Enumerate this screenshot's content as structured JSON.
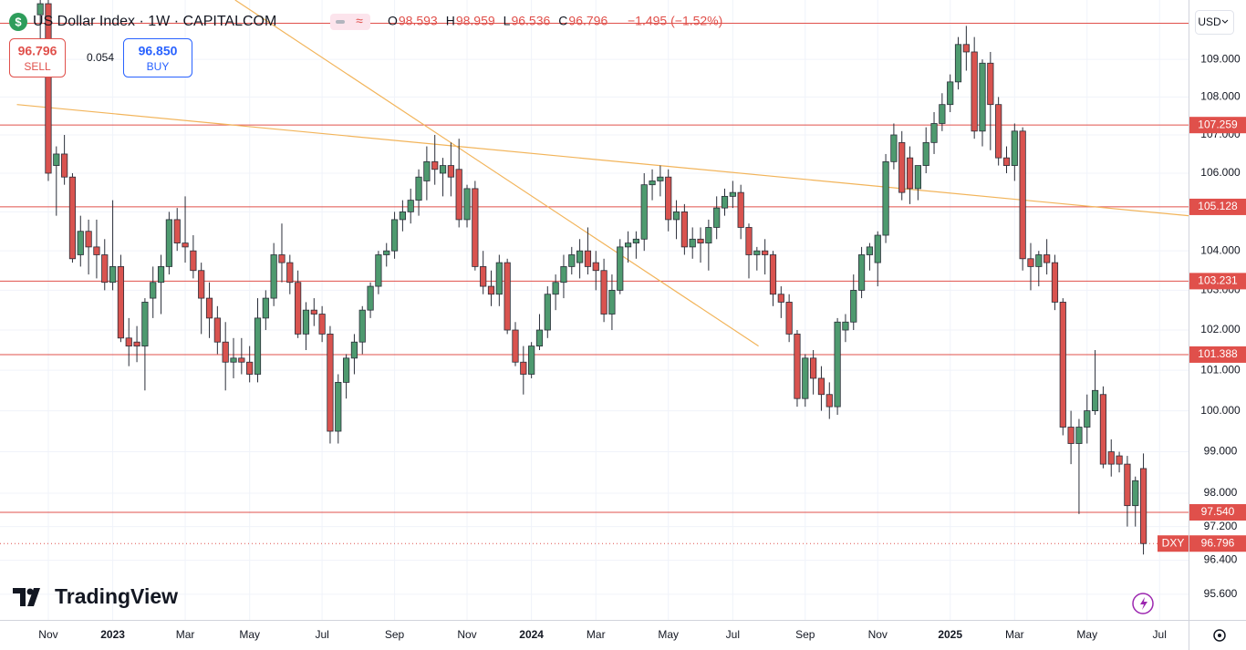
{
  "header": {
    "title": "US Dollar Index · 1W · CAPITALCOM",
    "ohlc": [
      {
        "key": "O",
        "value": "98.593"
      },
      {
        "key": "H",
        "value": "98.959"
      },
      {
        "key": "L",
        "value": "96.536"
      },
      {
        "key": "C",
        "value": "96.796"
      }
    ],
    "change": "−1.495 (−1.52%)",
    "sell": {
      "price": "96.796",
      "label": "SELL"
    },
    "spread": "0.054",
    "buy": {
      "price": "96.850",
      "label": "BUY"
    },
    "currency": "USD",
    "brand": "TradingView"
  },
  "chart_data": {
    "type": "candlestick",
    "log_scale": true,
    "grid": true,
    "up_color": "#4e9a6f",
    "down_color": "#d9534f",
    "level_color": "#e0504b",
    "trend_color": "#f2b45a",
    "ylim": [
      95.0,
      110.6
    ],
    "xlim": [
      -5,
      142.6
    ],
    "yticks": [
      {
        "value": 109,
        "label": "109.000"
      },
      {
        "value": 108,
        "label": "108.000"
      },
      {
        "value": 107,
        "label": "107.000"
      },
      {
        "value": 106,
        "label": "106.000"
      },
      {
        "value": 105,
        "label": "105.000"
      },
      {
        "value": 104,
        "label": "104.000"
      },
      {
        "value": 103,
        "label": "103.000"
      },
      {
        "value": 102,
        "label": "102.000"
      },
      {
        "value": 101,
        "label": "101.000"
      },
      {
        "value": 100,
        "label": "100.000"
      },
      {
        "value": 99,
        "label": "99.000"
      },
      {
        "value": 98,
        "label": "98.000"
      },
      {
        "value": 97.2,
        "label": "97.200"
      },
      {
        "value": 96.4,
        "label": "96.400"
      },
      {
        "value": 95.6,
        "label": "95.600"
      }
    ],
    "levels": [
      {
        "value": 107.259,
        "label": "107.259"
      },
      {
        "value": 105.128,
        "label": "105.128"
      },
      {
        "value": 103.231,
        "label": "103.231"
      },
      {
        "value": 101.388,
        "label": "101.388"
      },
      {
        "value": 97.54,
        "label": "97.540"
      }
    ],
    "unlabeled_levels": [
      109.97
    ],
    "last_price": 96.796,
    "symbol_tag": "DXY",
    "trendlines": [
      {
        "x": [
          -2.9,
          142.6
        ],
        "y": [
          107.8,
          104.9
        ]
      },
      {
        "x": [
          24.2,
          89.2
        ],
        "y": [
          110.6,
          101.6
        ]
      }
    ],
    "categories": [
      null,
      "Nov",
      null,
      null,
      null,
      null,
      null,
      null,
      null,
      "2023",
      null,
      null,
      null,
      null,
      null,
      null,
      null,
      null,
      "Mar",
      null,
      null,
      null,
      null,
      null,
      null,
      null,
      "May",
      null,
      null,
      null,
      null,
      null,
      null,
      null,
      null,
      "Jul",
      null,
      null,
      null,
      null,
      null,
      null,
      null,
      null,
      "Sep",
      null,
      null,
      null,
      null,
      null,
      null,
      null,
      null,
      "Nov",
      null,
      null,
      null,
      null,
      null,
      null,
      null,
      "2024",
      null,
      null,
      null,
      null,
      null,
      null,
      null,
      "Mar",
      null,
      null,
      null,
      null,
      null,
      null,
      null,
      null,
      "May",
      null,
      null,
      null,
      null,
      null,
      null,
      null,
      "Jul",
      null,
      null,
      null,
      null,
      null,
      null,
      null,
      null,
      "Sep",
      null,
      null,
      null,
      null,
      null,
      null,
      null,
      null,
      "Nov",
      null,
      null,
      null,
      null,
      null,
      null,
      null,
      null,
      "2025",
      null,
      null,
      null,
      null,
      null,
      null,
      null,
      "Mar",
      null,
      null,
      null,
      null,
      null,
      null,
      null,
      null,
      "May",
      null,
      null,
      null,
      null,
      null,
      null,
      null,
      null,
      "Jul"
    ],
    "open": [
      110.2,
      110.5,
      106.2,
      106.5,
      105.9,
      103.9,
      104.5,
      104.1,
      103.9,
      103.2,
      103.6,
      101.8,
      101.7,
      101.6,
      102.8,
      103.2,
      103.6,
      104.8,
      104.2,
      104.0,
      103.5,
      102.8,
      102.3,
      101.7,
      101.2,
      101.3,
      101.2,
      100.9,
      102.3,
      102.8,
      103.9,
      103.7,
      103.2,
      101.9,
      102.5,
      102.4,
      101.9,
      99.5,
      100.7,
      101.3,
      101.7,
      102.5,
      103.1,
      103.9,
      104.0,
      104.8,
      105.0,
      105.3,
      105.8,
      106.3,
      106.0,
      106.2,
      106.1,
      104.8,
      105.6,
      103.6,
      103.1,
      102.9,
      103.7,
      102.0,
      101.2,
      100.9,
      101.6,
      102.0,
      102.9,
      103.2,
      103.6,
      103.7,
      104.0,
      103.7,
      103.5,
      102.4,
      103.0,
      104.1,
      104.2,
      104.3,
      105.7,
      105.8,
      105.9,
      104.8,
      105.0,
      104.1,
      104.3,
      104.2,
      104.6,
      105.1,
      105.4,
      105.5,
      104.6,
      103.9,
      104.0,
      103.9,
      102.9,
      102.7,
      101.9,
      100.3,
      101.3,
      100.8,
      100.4,
      100.1,
      102.0,
      102.2,
      103.0,
      103.9,
      103.7,
      104.4,
      106.3,
      106.8,
      106.4,
      105.6,
      106.2,
      106.8,
      107.3,
      107.8,
      108.4,
      109.4,
      109.2,
      107.1,
      108.9,
      107.8,
      106.4,
      106.2,
      107.1,
      103.8,
      103.6,
      103.9,
      103.7,
      102.7,
      99.6,
      99.2,
      99.6,
      100.0,
      100.4,
      99.0,
      98.9,
      98.7,
      97.7,
      98.593,
      null,
      null
    ],
    "high": [
      110.9,
      110.6,
      106.7,
      107.0,
      106.0,
      104.9,
      104.8,
      104.8,
      104.3,
      105.3,
      103.9,
      102.3,
      102.1,
      102.8,
      103.6,
      103.9,
      105.0,
      105.1,
      105.4,
      104.4,
      103.7,
      103.2,
      102.6,
      102.2,
      101.8,
      101.8,
      101.6,
      102.8,
      103.0,
      104.2,
      104.7,
      103.9,
      103.5,
      102.7,
      102.8,
      102.6,
      102.1,
      100.9,
      101.4,
      101.9,
      102.6,
      103.2,
      104.0,
      104.2,
      105.0,
      105.3,
      105.6,
      106.1,
      106.7,
      107.0,
      106.4,
      106.8,
      106.9,
      105.7,
      105.8,
      104.0,
      103.5,
      103.9,
      103.8,
      102.2,
      101.6,
      101.7,
      102.4,
      103.1,
      103.4,
      103.9,
      104.1,
      104.3,
      104.6,
      104.0,
      103.8,
      103.4,
      104.3,
      104.5,
      104.5,
      106.0,
      106.1,
      106.2,
      106.1,
      105.3,
      105.2,
      104.6,
      104.6,
      104.8,
      105.4,
      105.6,
      105.8,
      105.7,
      104.7,
      104.1,
      104.3,
      104.0,
      103.1,
      102.9,
      102.0,
      101.4,
      101.5,
      101.1,
      100.7,
      102.3,
      102.4,
      103.4,
      104.1,
      104.2,
      104.5,
      106.5,
      107.3,
      107.1,
      106.7,
      106.2,
      107.2,
      107.6,
      108.1,
      108.6,
      109.6,
      109.9,
      109.6,
      109.0,
      109.2,
      108.0,
      106.7,
      107.3,
      107.2,
      104.2,
      104.0,
      104.3,
      103.9,
      102.8,
      100.0,
      99.8,
      100.4,
      101.5,
      100.6,
      99.3,
      99.0,
      98.9,
      98.4,
      98.959,
      null,
      null
    ],
    "low": [
      109.5,
      105.8,
      104.9,
      105.7,
      103.7,
      103.6,
      103.4,
      103.3,
      103.0,
      103.0,
      101.7,
      101.1,
      101.2,
      100.5,
      102.3,
      102.4,
      103.4,
      104.0,
      103.7,
      103.3,
      101.9,
      101.8,
      101.4,
      100.5,
      100.8,
      100.9,
      100.7,
      100.7,
      102.0,
      102.6,
      103.2,
      102.9,
      101.8,
      101.5,
      102.1,
      101.7,
      99.2,
      99.2,
      100.3,
      100.9,
      101.4,
      102.3,
      102.9,
      103.6,
      103.8,
      104.5,
      104.7,
      104.9,
      105.3,
      105.7,
      105.4,
      105.4,
      104.6,
      104.6,
      103.5,
      102.9,
      102.6,
      102.6,
      101.9,
      101.1,
      100.4,
      100.8,
      101.5,
      101.8,
      102.5,
      102.8,
      103.4,
      103.3,
      103.4,
      103.0,
      102.2,
      102.0,
      102.9,
      103.7,
      103.8,
      104.0,
      105.3,
      105.4,
      104.5,
      104.3,
      103.9,
      103.8,
      103.7,
      103.5,
      104.3,
      104.9,
      105.1,
      104.3,
      103.3,
      103.5,
      103.4,
      102.6,
      102.3,
      101.7,
      100.1,
      100.1,
      100.4,
      100.0,
      99.8,
      99.9,
      101.7,
      102.0,
      102.8,
      103.5,
      103.1,
      104.2,
      106.1,
      105.3,
      105.2,
      105.3,
      106.0,
      106.5,
      107.1,
      107.6,
      108.2,
      108.7,
      106.9,
      106.7,
      106.6,
      106.2,
      106.0,
      105.8,
      103.5,
      103.0,
      103.1,
      103.4,
      102.5,
      99.4,
      98.7,
      97.5,
      99.2,
      99.9,
      98.6,
      98.4,
      98.5,
      97.2,
      97.2,
      96.536,
      null,
      null
    ],
    "close": [
      110.5,
      106.0,
      106.5,
      105.9,
      103.8,
      104.5,
      104.1,
      103.9,
      103.2,
      103.6,
      101.8,
      101.6,
      101.6,
      102.7,
      103.2,
      103.6,
      104.8,
      104.2,
      104.1,
      103.5,
      102.8,
      102.3,
      101.7,
      101.2,
      101.3,
      101.2,
      100.9,
      102.3,
      102.8,
      103.9,
      103.7,
      103.2,
      101.9,
      102.5,
      102.4,
      101.9,
      99.5,
      100.7,
      101.3,
      101.7,
      102.5,
      103.1,
      103.9,
      104.0,
      104.8,
      105.0,
      105.3,
      105.9,
      106.3,
      106.1,
      106.2,
      105.9,
      104.8,
      105.6,
      103.6,
      103.1,
      102.9,
      103.7,
      102.0,
      101.2,
      100.9,
      101.6,
      102.0,
      102.9,
      103.2,
      103.6,
      103.9,
      104.0,
      103.6,
      103.5,
      102.4,
      103.0,
      104.1,
      104.2,
      104.3,
      105.7,
      105.8,
      105.9,
      104.8,
      105.0,
      104.1,
      104.3,
      104.2,
      104.6,
      105.1,
      105.4,
      105.5,
      104.6,
      103.9,
      104.0,
      103.9,
      102.9,
      102.7,
      101.9,
      100.3,
      101.3,
      100.8,
      100.4,
      100.1,
      102.2,
      102.2,
      103.0,
      103.9,
      104.1,
      104.4,
      106.3,
      107.0,
      105.5,
      105.6,
      106.2,
      106.8,
      107.3,
      107.8,
      108.4,
      109.4,
      109.2,
      107.1,
      108.9,
      107.8,
      106.4,
      106.2,
      107.1,
      103.8,
      103.6,
      103.9,
      103.7,
      102.7,
      99.6,
      99.2,
      99.6,
      100.0,
      100.5,
      98.7,
      98.7,
      98.7,
      97.7,
      98.3,
      96.796,
      null,
      null
    ]
  }
}
